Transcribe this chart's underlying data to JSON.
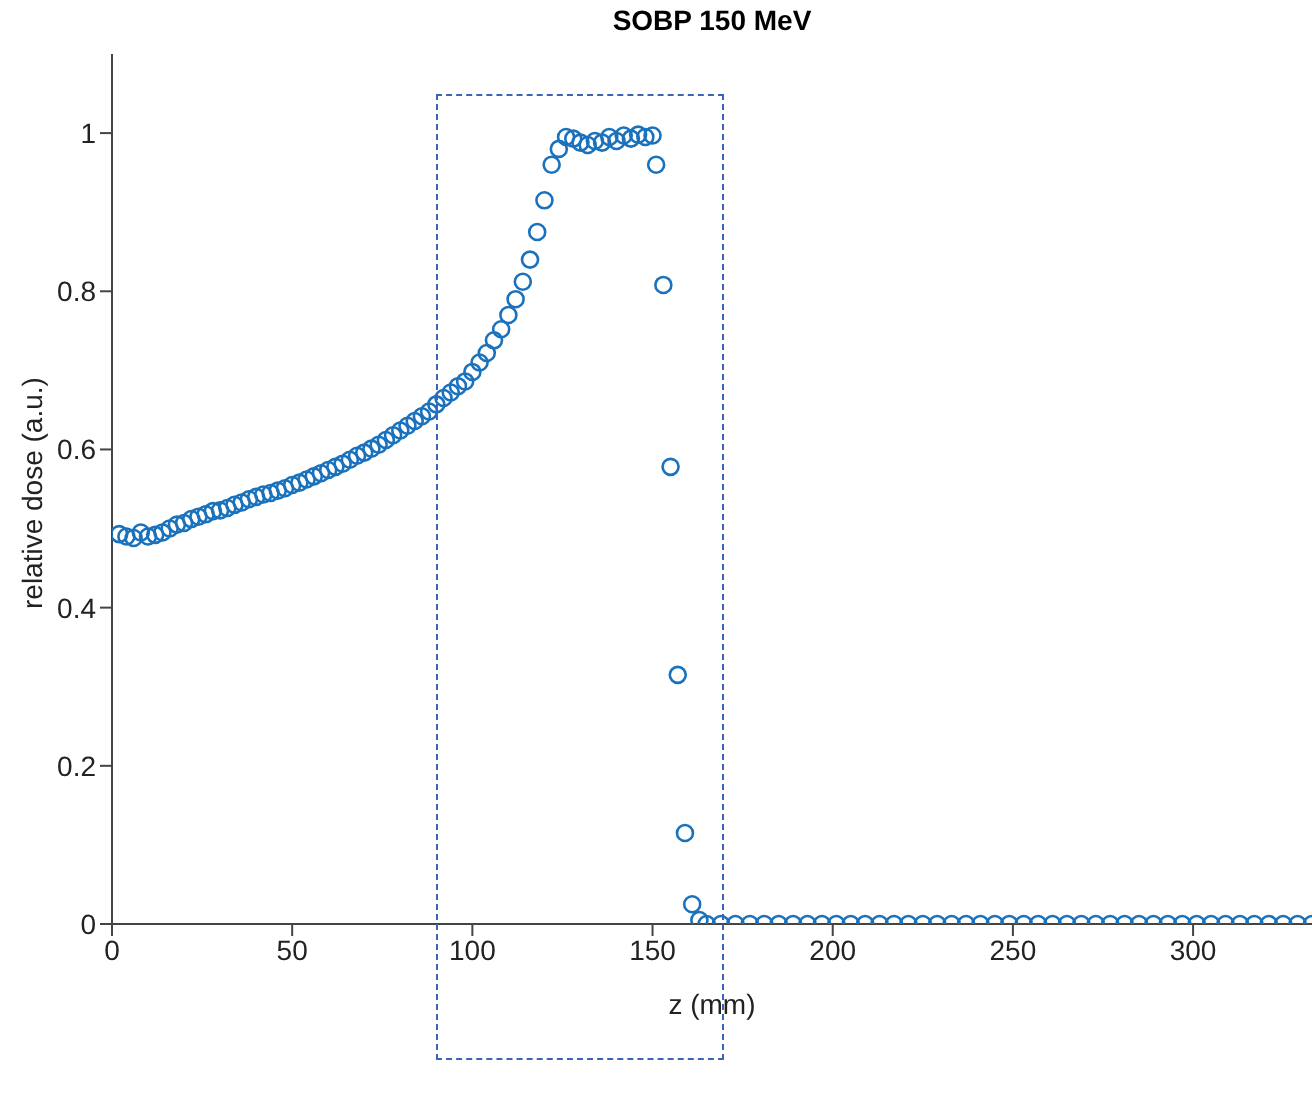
{
  "chart_data": {
    "type": "scatter",
    "title": "SOBP 150 MeV",
    "xlabel": "z (mm)",
    "ylabel": "relative dose (a.u.)",
    "xlim": [
      0,
      333
    ],
    "xticks": [
      0,
      50,
      100,
      150,
      200,
      250,
      300
    ],
    "ylim": [
      0,
      1.1
    ],
    "yticks": [
      0,
      0.2,
      0.4,
      0.6,
      0.8,
      1
    ],
    "grid": false,
    "marker": "circle",
    "series": [
      {
        "color": "#1a72bd",
        "x": [
          2,
          4,
          6,
          8,
          10,
          12,
          14,
          16,
          18,
          20,
          22,
          24,
          26,
          28,
          30,
          32,
          34,
          36,
          38,
          40,
          42,
          44,
          46,
          48,
          50,
          52,
          54,
          56,
          58,
          60,
          62,
          64,
          66,
          68,
          70,
          72,
          74,
          76,
          78,
          80,
          82,
          84,
          86,
          88,
          90,
          92,
          94,
          96,
          98,
          100,
          102,
          104,
          106,
          108,
          110,
          112,
          114,
          116,
          118,
          120,
          122,
          124,
          126,
          128,
          130,
          132,
          134,
          136,
          138,
          140,
          142,
          144,
          146,
          148,
          150,
          151,
          153,
          155,
          157,
          159,
          161,
          163,
          165,
          169,
          173,
          177,
          181,
          185,
          189,
          193,
          197,
          201,
          205,
          209,
          213,
          217,
          221,
          225,
          229,
          233,
          237,
          241,
          245,
          249,
          253,
          257,
          261,
          265,
          269,
          273,
          277,
          281,
          285,
          289,
          293,
          297,
          301,
          305,
          309,
          313,
          317,
          321,
          325,
          329,
          333
        ],
        "values": [
          0.493,
          0.49,
          0.488,
          0.495,
          0.49,
          0.492,
          0.495,
          0.5,
          0.505,
          0.507,
          0.512,
          0.515,
          0.518,
          0.522,
          0.523,
          0.526,
          0.53,
          0.533,
          0.537,
          0.54,
          0.543,
          0.545,
          0.548,
          0.551,
          0.555,
          0.558,
          0.562,
          0.566,
          0.57,
          0.574,
          0.578,
          0.582,
          0.587,
          0.592,
          0.596,
          0.601,
          0.606,
          0.612,
          0.618,
          0.624,
          0.63,
          0.636,
          0.642,
          0.648,
          0.657,
          0.665,
          0.672,
          0.68,
          0.686,
          0.698,
          0.71,
          0.722,
          0.738,
          0.752,
          0.77,
          0.79,
          0.812,
          0.84,
          0.875,
          0.915,
          0.96,
          0.98,
          0.995,
          0.993,
          0.988,
          0.985,
          0.99,
          0.988,
          0.995,
          0.99,
          0.997,
          0.993,
          0.998,
          0.995,
          0.997,
          0.96,
          0.808,
          0.578,
          0.315,
          0.115,
          0.025,
          0.005,
          0,
          0,
          0,
          0,
          0,
          0,
          0,
          0,
          0,
          0,
          0,
          0,
          0,
          0,
          0,
          0,
          0,
          0,
          0,
          0,
          0,
          0,
          0,
          0,
          0,
          0,
          0,
          0,
          0,
          0,
          0,
          0,
          0,
          0,
          0,
          0,
          0,
          0,
          0,
          0,
          0,
          0,
          0
        ]
      }
    ]
  }
}
